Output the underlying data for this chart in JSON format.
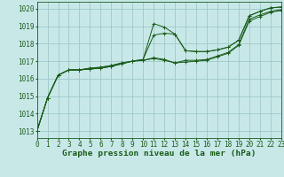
{
  "title": "Graphe pression niveau de la mer (hPa)",
  "bg_color": "#c8e8e8",
  "grid_color": "#9ec8c8",
  "line_color": "#1a5c1a",
  "xlim": [
    0,
    23
  ],
  "ylim": [
    1012.6,
    1020.4
  ],
  "yticks": [
    1013,
    1014,
    1015,
    1016,
    1017,
    1018,
    1019,
    1020
  ],
  "xticks": [
    0,
    1,
    2,
    3,
    4,
    5,
    6,
    7,
    8,
    9,
    10,
    11,
    12,
    13,
    14,
    15,
    16,
    17,
    18,
    19,
    20,
    21,
    22,
    23
  ],
  "series": [
    [
      1013.0,
      1014.9,
      1016.2,
      1016.5,
      1016.5,
      1016.6,
      1016.65,
      1016.75,
      1016.9,
      1017.0,
      1017.1,
      1019.15,
      1018.95,
      1018.55,
      1017.6,
      1017.55,
      1017.55,
      1017.65,
      1017.8,
      1018.2,
      1019.6,
      1019.85,
      1020.05,
      1020.1
    ],
    [
      1013.0,
      1014.9,
      1016.2,
      1016.5,
      1016.5,
      1016.6,
      1016.65,
      1016.75,
      1016.9,
      1017.0,
      1017.1,
      1018.5,
      1018.6,
      1018.55,
      1017.6,
      1017.55,
      1017.55,
      1017.65,
      1017.8,
      1018.2,
      1019.6,
      1019.85,
      1020.05,
      1020.1
    ],
    [
      1013.0,
      1014.9,
      1016.2,
      1016.5,
      1016.5,
      1016.55,
      1016.6,
      1016.7,
      1016.85,
      1017.0,
      1017.05,
      1017.2,
      1017.1,
      1016.9,
      1017.05,
      1017.05,
      1017.1,
      1017.3,
      1017.5,
      1017.95,
      1019.4,
      1019.65,
      1019.85,
      1019.95
    ],
    [
      1013.0,
      1014.9,
      1016.2,
      1016.5,
      1016.5,
      1016.55,
      1016.6,
      1016.7,
      1016.85,
      1017.0,
      1017.05,
      1017.15,
      1017.05,
      1016.9,
      1016.95,
      1017.0,
      1017.05,
      1017.25,
      1017.45,
      1017.9,
      1019.3,
      1019.55,
      1019.8,
      1019.9
    ]
  ],
  "tick_fontsize": 5.5,
  "title_fontsize": 6.8
}
